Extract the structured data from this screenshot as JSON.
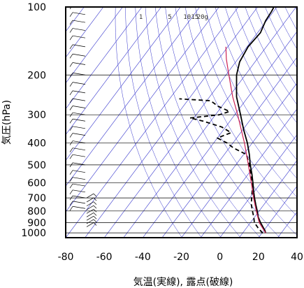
{
  "chart_data": {
    "type": "line",
    "title": "",
    "xlabel": "気温(実線), 露点(破線)",
    "ylabel": "気圧(hPa)",
    "xlim": [
      -80,
      40
    ],
    "ylim_hpa": [
      100,
      1050
    ],
    "y_scale": "log",
    "x_ticks": [
      -80,
      -60,
      -40,
      -20,
      0,
      20,
      40
    ],
    "y_ticks": [
      100,
      200,
      300,
      400,
      500,
      600,
      700,
      800,
      900,
      1000
    ],
    "mixing_ratio_labels": [
      "1",
      "5",
      "10",
      "15",
      "20g"
    ],
    "grid": true,
    "colors": {
      "temperature": "#000000",
      "dewpoint": "#000000",
      "parcel": "#cc2255",
      "isotherm_grid": "#3333cc",
      "pressure_grid": "#000000"
    },
    "series": [
      {
        "key": "temperature",
        "style": "solid",
        "points": [
          {
            "p": 1003,
            "t": 22.0
          },
          {
            "p": 975,
            "t": 20.5
          },
          {
            "p": 950,
            "t": 18.8
          },
          {
            "p": 925,
            "t": 17.0
          },
          {
            "p": 900,
            "t": 15.2
          },
          {
            "p": 875,
            "t": 13.5
          },
          {
            "p": 850,
            "t": 11.8
          },
          {
            "p": 800,
            "t": 9.0
          },
          {
            "p": 750,
            "t": 5.8
          },
          {
            "p": 700,
            "t": 2.5
          },
          {
            "p": 650,
            "t": -0.8
          },
          {
            "p": 600,
            "t": -4.2
          },
          {
            "p": 550,
            "t": -8.0
          },
          {
            "p": 500,
            "t": -12.5
          },
          {
            "p": 450,
            "t": -17.0
          },
          {
            "p": 400,
            "t": -22.5
          },
          {
            "p": 350,
            "t": -29.5
          },
          {
            "p": 300,
            "t": -37.0
          },
          {
            "p": 250,
            "t": -46.0
          },
          {
            "p": 200,
            "t": -54.5
          },
          {
            "p": 175,
            "t": -58.0
          },
          {
            "p": 150,
            "t": -59.5
          },
          {
            "p": 130,
            "t": -58.5
          },
          {
            "p": 115,
            "t": -60.5
          },
          {
            "p": 105,
            "t": -61.0
          },
          {
            "p": 100,
            "t": -61.5
          }
        ]
      },
      {
        "key": "dewpoint",
        "style": "dashed",
        "points": [
          {
            "p": 1003,
            "t": 20.5
          },
          {
            "p": 950,
            "t": 16.0
          },
          {
            "p": 900,
            "t": 12.0
          },
          {
            "p": 850,
            "t": 9.5
          },
          {
            "p": 800,
            "t": 6.5
          },
          {
            "p": 750,
            "t": 3.5
          },
          {
            "p": 700,
            "t": 1.0
          },
          {
            "p": 650,
            "t": -1.5
          },
          {
            "p": 600,
            "t": -4.5
          },
          {
            "p": 550,
            "t": -8.5
          },
          {
            "p": 500,
            "t": -13.0
          },
          {
            "p": 450,
            "t": -18.5
          },
          {
            "p": 420,
            "t": -28.0
          },
          {
            "p": 400,
            "t": -33.0
          },
          {
            "p": 380,
            "t": -40.0
          },
          {
            "p": 360,
            "t": -35.0
          },
          {
            "p": 340,
            "t": -42.0
          },
          {
            "p": 320,
            "t": -54.0
          },
          {
            "p": 310,
            "t": -62.0
          },
          {
            "p": 300,
            "t": -48.0
          },
          {
            "p": 290,
            "t": -44.0
          },
          {
            "p": 275,
            "t": -52.0
          },
          {
            "p": 260,
            "t": -58.0
          },
          {
            "p": 255,
            "t": -75.0
          }
        ]
      },
      {
        "key": "parcel",
        "style": "solid",
        "points": [
          {
            "p": 1003,
            "t": 22.0
          },
          {
            "p": 900,
            "t": 14.5
          },
          {
            "p": 800,
            "t": 8.5
          },
          {
            "p": 700,
            "t": 2.0
          },
          {
            "p": 600,
            "t": -5.0
          },
          {
            "p": 500,
            "t": -13.5
          },
          {
            "p": 400,
            "t": -24.0
          },
          {
            "p": 300,
            "t": -38.5
          },
          {
            "p": 250,
            "t": -48.0
          },
          {
            "p": 200,
            "t": -58.5
          },
          {
            "p": 170,
            "t": -66.0
          },
          {
            "p": 150,
            "t": -71.0
          }
        ]
      }
    ],
    "wind_barbs": {
      "left_column": [
        100,
        108,
        117,
        127,
        137,
        150,
        165,
        180,
        200,
        220,
        240,
        260,
        280,
        300,
        320,
        345,
        370,
        400,
        430,
        460,
        500,
        540,
        580,
        620,
        660,
        700,
        740,
        780
      ],
      "right_column": [
        700,
        730,
        760,
        790,
        820,
        850,
        880,
        910,
        940
      ]
    }
  }
}
